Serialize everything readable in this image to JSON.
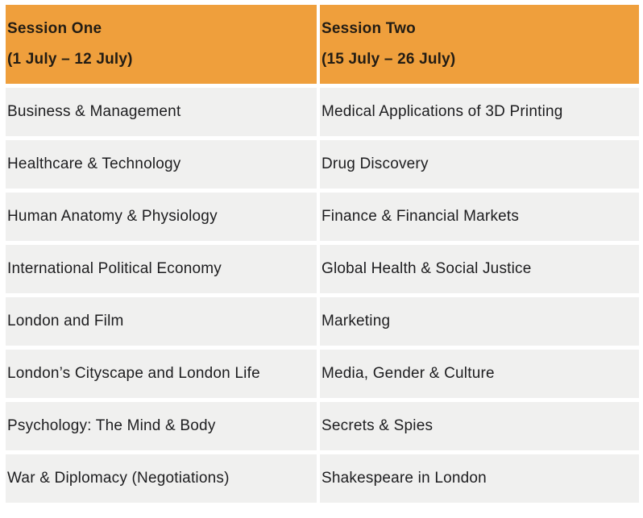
{
  "table": {
    "columns": [
      {
        "title": "Session One",
        "dates": "(1 July – 12 July)",
        "courses": [
          "Business & Management",
          "Healthcare & Technology",
          "Human Anatomy & Physiology",
          "International Political Economy",
          "London and Film",
          "London’s Cityscape and London Life",
          "Psychology: The Mind & Body",
          "War & Diplomacy (Negotiations)"
        ]
      },
      {
        "title": "Session Two",
        "dates": "(15 July – 26 July)",
        "courses": [
          "Medical Applications of 3D Printing",
          "Drug Discovery",
          "Finance & Financial Markets",
          "Global Health & Social Justice",
          "Marketing",
          "Media, Gender & Culture",
          "Secrets & Spies",
          "Shakespeare in London"
        ]
      }
    ]
  },
  "colors": {
    "header_bg": "#EF9F3C",
    "row_bg": "#F0F0EF",
    "header_text": "#221C14",
    "row_text": "#1D1D1F",
    "gutter": "#FFFFFF"
  }
}
